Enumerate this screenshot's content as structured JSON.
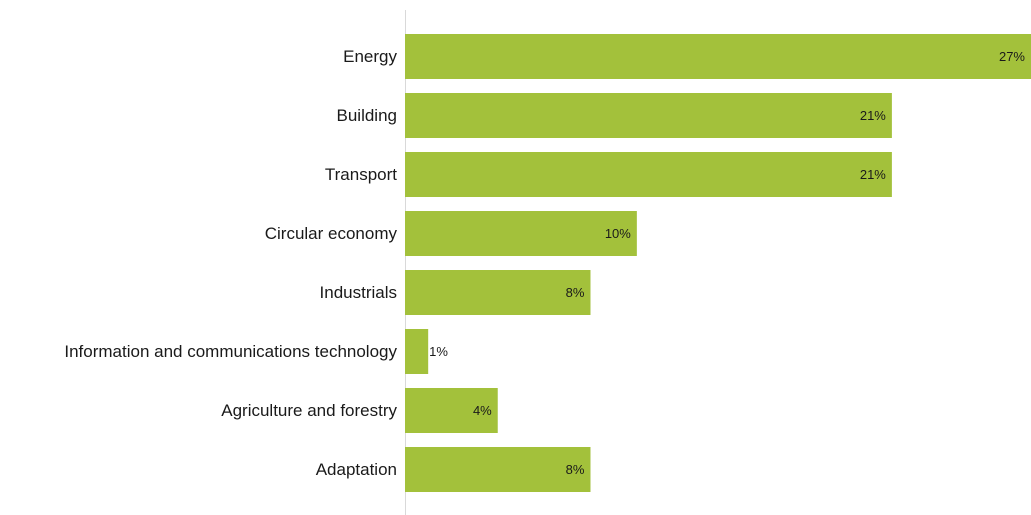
{
  "chart_data": {
    "type": "bar",
    "orientation": "horizontal",
    "categories": [
      "Energy",
      "Building",
      "Transport",
      "Circular economy",
      "Industrials",
      "Information and communications technology",
      "Agriculture and forestry",
      "Adaptation"
    ],
    "values": [
      27,
      21,
      21,
      10,
      8,
      1,
      4,
      8
    ],
    "value_labels": [
      "27%",
      "21%",
      "21%",
      "10%",
      "8%",
      "1%",
      "4%",
      "8%"
    ],
    "unit": "%",
    "xlim": [
      0,
      27
    ],
    "grid": false,
    "legend": "none",
    "title": "",
    "xlabel": "",
    "ylabel": ""
  },
  "colors": {
    "bar": "#a3c13b",
    "axis": "#d9d9d9",
    "text": "#1a1a1a"
  }
}
